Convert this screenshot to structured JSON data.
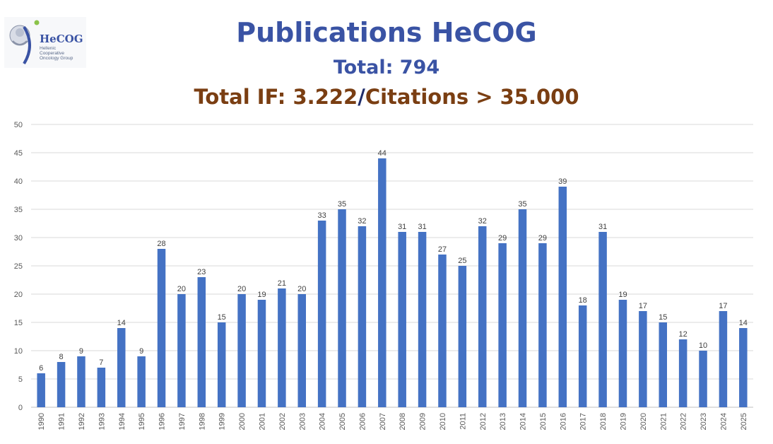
{
  "logo": {
    "name": "HeCOG",
    "sub1": "Hellenic",
    "sub2": "Cooperative",
    "sub3": "Oncology Group"
  },
  "header": {
    "title": "Publications HeCOG",
    "total": "Total: 794",
    "if_part": "Total IF: 3.222",
    "separator": "/",
    "citations_part": "Citations > 35.000"
  },
  "colors": {
    "bar": "#4472c4",
    "title": "#3a53a4",
    "accent": "#7a3e12",
    "grid": "#d9d9d9"
  },
  "chart_data": {
    "type": "bar",
    "title": "",
    "xlabel": "",
    "ylabel": "",
    "ylim": [
      0,
      50
    ],
    "yticks": [
      0,
      5,
      10,
      15,
      20,
      25,
      30,
      35,
      40,
      45,
      50
    ],
    "grid": true,
    "categories": [
      "1990",
      "1991",
      "1992",
      "1993",
      "1994",
      "1995",
      "1996",
      "1997",
      "1998",
      "1999",
      "2000",
      "2001",
      "2002",
      "2003",
      "2004",
      "2005",
      "2006",
      "2007",
      "2008",
      "2009",
      "2010",
      "2011",
      "2012",
      "2013",
      "2014",
      "2015",
      "2016",
      "2017",
      "2018",
      "2019",
      "2020",
      "2021",
      "2022",
      "2023",
      "2024",
      "2025"
    ],
    "values": [
      6,
      8,
      9,
      7,
      14,
      9,
      28,
      20,
      23,
      15,
      20,
      19,
      21,
      20,
      33,
      35,
      32,
      44,
      31,
      31,
      27,
      25,
      32,
      29,
      35,
      29,
      39,
      18,
      31,
      19,
      17,
      15,
      12,
      10,
      17,
      14
    ]
  }
}
